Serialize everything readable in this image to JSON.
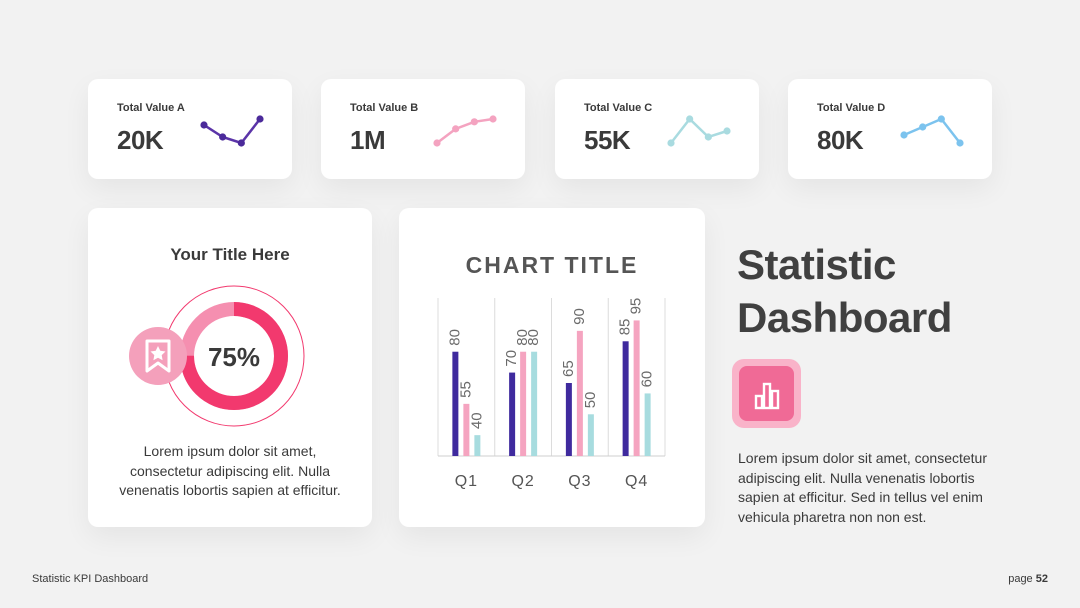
{
  "kpis": [
    {
      "label": "Total Value A",
      "value": "20K",
      "color": "#4b2a9a",
      "trend": [
        4,
        2,
        1,
        5
      ],
      "line_color": "#5b34a8"
    },
    {
      "label": "Total Value B",
      "value": "1M",
      "color": "#f4a3c0",
      "trend": [
        1,
        3,
        4,
        4.4
      ],
      "line_color": "#f4a3c0"
    },
    {
      "label": "Total Value C",
      "value": "55K",
      "color": "#a9dbe0",
      "trend": [
        1,
        5,
        2,
        3
      ],
      "line_color": "#a9dbe0"
    },
    {
      "label": "Total Value D",
      "value": "80K",
      "color": "#7cc3ee",
      "trend": [
        2,
        3,
        4,
        1
      ],
      "line_color": "#7cc3ee"
    }
  ],
  "donut": {
    "title": "Your Title Here",
    "percent_label": "75%",
    "percent": 75,
    "icon": "bookmark-star-icon",
    "body": "Lorem ipsum dolor sit amet, consectetur adipiscing elit. Nulla venenatis lobortis sapien at efficitur.",
    "colors": {
      "ring": "#f2396e",
      "ring_light": "#f58fb0",
      "icon_bg": "#f4a0bb"
    }
  },
  "chart_data": {
    "type": "bar",
    "title": "CHART TITLE",
    "categories": [
      "Q1",
      "Q2",
      "Q3",
      "Q4"
    ],
    "series": [
      {
        "values": [
          80,
          70,
          65,
          85
        ],
        "color": "#3f2a9e"
      },
      {
        "values": [
          55,
          80,
          90,
          95
        ],
        "color": "#f5a4c0"
      },
      {
        "values": [
          40,
          80,
          50,
          60
        ],
        "color": "#a7dcdf"
      }
    ],
    "ylim": [
      30,
      100
    ],
    "data_labels": true,
    "grid": "vertical separators"
  },
  "side": {
    "title_line1": "Statistic",
    "title_line2": "Dashboard",
    "icon": "bar-chart-icon",
    "body": "Lorem ipsum dolor sit amet, consectetur adipiscing elit. Nulla venenatis lobortis sapien at efficitur. Sed in tellus vel enim vehicula pharetra non non est."
  },
  "footer": {
    "left": "Statistic KPI Dashboard",
    "page_prefix": "page",
    "page_number": "52"
  }
}
